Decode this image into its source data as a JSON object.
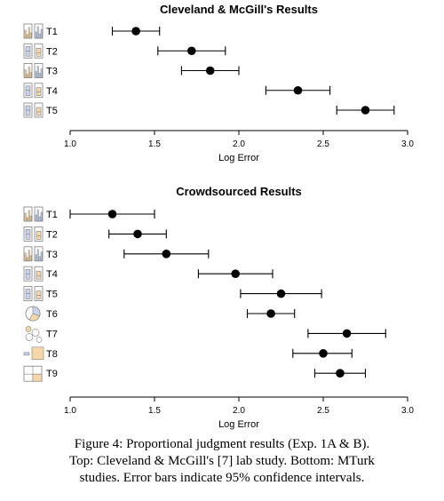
{
  "chart_data": [
    {
      "type": "dot-errorbar",
      "title": "Cleveland & McGill's Results",
      "xlabel": "Log Error",
      "xlim": [
        1.0,
        3.0
      ],
      "xticks": [
        "1.0",
        "1.5",
        "2.0",
        "2.5",
        "3.0"
      ],
      "categories": [
        "T1",
        "T2",
        "T3",
        "T4",
        "T5"
      ],
      "values": [
        1.39,
        1.72,
        1.83,
        2.35,
        2.75
      ],
      "ci_low": [
        1.25,
        1.52,
        1.66,
        2.16,
        2.58
      ],
      "ci_high": [
        1.53,
        1.92,
        2.0,
        2.54,
        2.92
      ],
      "grid": false
    },
    {
      "type": "dot-errorbar",
      "title": "Crowdsourced Results",
      "xlabel": "Log Error",
      "xlim": [
        1.0,
        3.0
      ],
      "xticks": [
        "1.0",
        "1.5",
        "2.0",
        "2.5",
        "3.0"
      ],
      "categories": [
        "T1",
        "T2",
        "T3",
        "T4",
        "T5",
        "T6",
        "T7",
        "T8",
        "T9"
      ],
      "values": [
        1.25,
        1.4,
        1.57,
        1.98,
        2.25,
        2.19,
        2.64,
        2.5,
        2.6
      ],
      "ci_low": [
        1.0,
        1.23,
        1.32,
        1.76,
        2.01,
        2.05,
        2.41,
        2.32,
        2.45
      ],
      "ci_high": [
        1.5,
        1.57,
        1.82,
        2.2,
        2.49,
        2.33,
        2.87,
        2.67,
        2.75
      ],
      "grid": false
    }
  ],
  "caption": [
    "Figure 4: Proportional judgment results (Exp. 1A & B).",
    "Top: Cleveland & McGill's [7] lab study. Bottom: MTurk",
    "studies. Error bars indicate 95% confidence intervals."
  ],
  "colors": {
    "marker": "#000000",
    "icon_blue": "#c8d2ec",
    "icon_orange": "#f6d8a8",
    "icon_stroke": "#808080"
  },
  "icons": [
    "bar-group-icon",
    "stacked-bar-icon",
    "bar-group-icon",
    "stacked-bar-icon",
    "stacked-bar-icon",
    "pie-icon",
    "bubble-icon",
    "square-area-icon",
    "treemap-icon"
  ]
}
